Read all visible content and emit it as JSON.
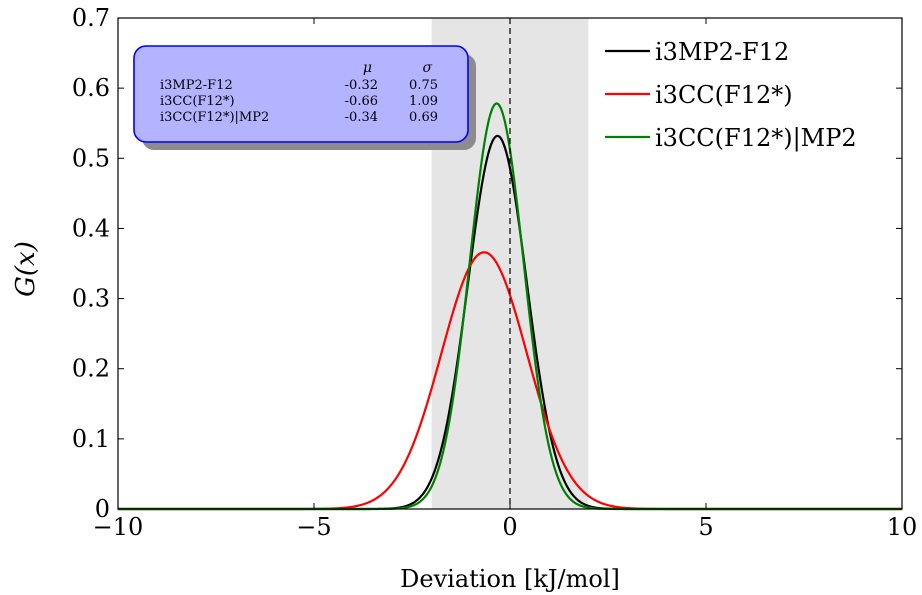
{
  "chart_data": {
    "type": "line",
    "title": "",
    "xlabel": "Deviation [kJ/mol]",
    "ylabel": "G(x)",
    "xlim": [
      -10,
      10
    ],
    "ylim": [
      0,
      0.7
    ],
    "x_ticks": [
      -10,
      -5,
      0,
      5,
      10
    ],
    "x_tick_labels": [
      "−10",
      "−5",
      "0",
      "5",
      "10"
    ],
    "y_ticks": [
      0,
      0.1,
      0.2,
      0.3,
      0.4,
      0.5,
      0.6,
      0.7
    ],
    "y_tick_labels": [
      "0",
      "0.1",
      "0.2",
      "0.3",
      "0.4",
      "0.5",
      "0.6",
      "0.7"
    ],
    "grid": false,
    "legend_position": "top-right",
    "shaded_region": {
      "x": [
        -2,
        2
      ],
      "color": "#e5e5e5"
    },
    "reference_line": {
      "x": 0,
      "style": "dashed",
      "color": "#000000"
    },
    "series": [
      {
        "name": "i3MP2-F12",
        "distribution": "gaussian",
        "mu": -0.32,
        "sigma": 0.75,
        "color": "#000000"
      },
      {
        "name": "i3CC(F12*)",
        "distribution": "gaussian",
        "mu": -0.66,
        "sigma": 1.09,
        "color": "#ff0000"
      },
      {
        "name": "i3CC(F12*)|MP2",
        "distribution": "gaussian",
        "mu": -0.34,
        "sigma": 0.69,
        "color": "#008000"
      }
    ],
    "stats_table": {
      "headers": [
        "",
        "μ",
        "σ"
      ],
      "rows": [
        [
          "i3MP2-F12",
          "-0.32",
          "0.75"
        ],
        [
          "i3CC(F12*)",
          "-0.66",
          "1.09"
        ],
        [
          "i3CC(F12*)|MP2",
          "-0.34",
          "0.69"
        ]
      ],
      "fill_color": "#b3b3ff",
      "border_color": "#0000ff"
    }
  }
}
